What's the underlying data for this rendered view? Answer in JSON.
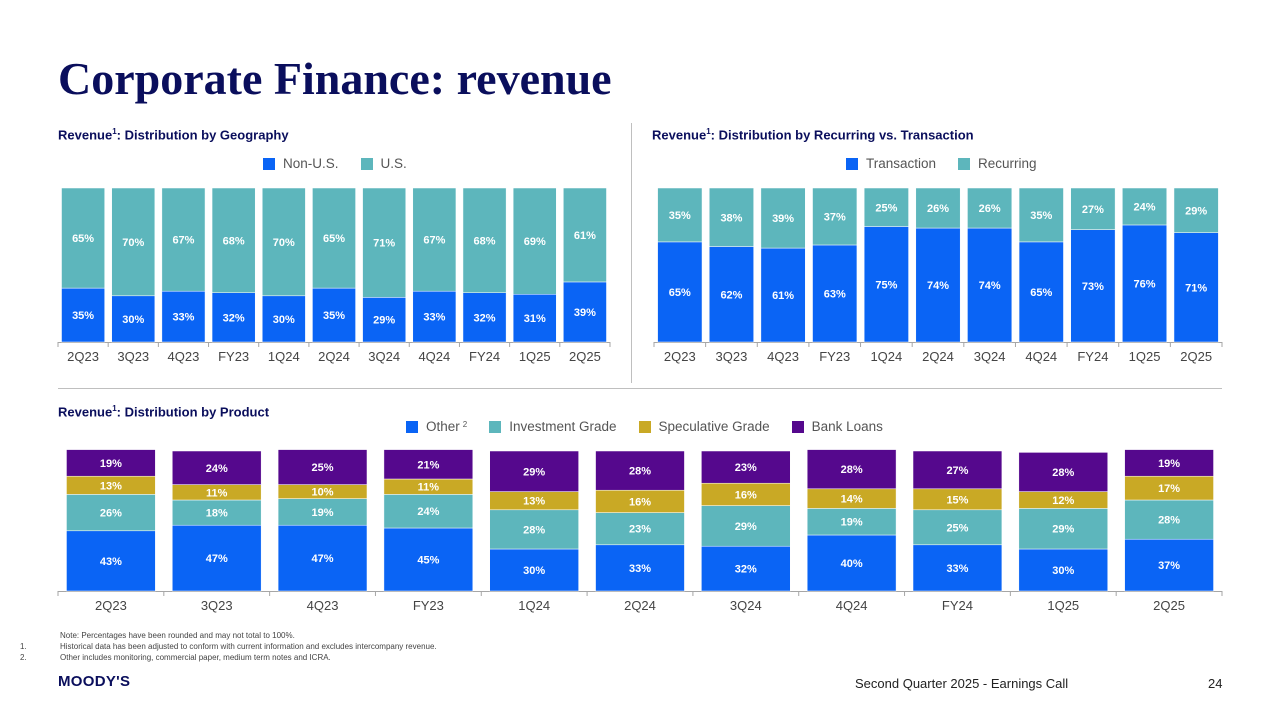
{
  "page": {
    "title": "Corporate Finance: revenue",
    "footer": "Second Quarter 2025 - Earnings Call",
    "page_number": "24",
    "logo": "MOODY'S",
    "note": "Note: Percentages have been rounded and may not total to 100%.",
    "footnotes": [
      {
        "num": "1.",
        "text": "Historical data has been adjusted to conform with current information and excludes intercompany revenue."
      },
      {
        "num": "2.",
        "text": "Other includes monitoring, commercial paper, medium term notes and ICRA."
      }
    ]
  },
  "colors": {
    "blue": "#0a64f5",
    "teal": "#5db6bc",
    "gold": "#c9a925",
    "purple": "#55088d",
    "title": "#0a0e5c"
  },
  "chart_data": [
    {
      "type": "bar",
      "stacked": true,
      "title_prefix": "Revenue",
      "title_sup": "1",
      "title_suffix": ": Distribution by Geography",
      "categories": [
        "2Q23",
        "3Q23",
        "4Q23",
        "FY23",
        "1Q24",
        "2Q24",
        "3Q24",
        "4Q24",
        "FY24",
        "1Q25",
        "2Q25"
      ],
      "series": [
        {
          "name": "Non-U.S.",
          "color": "#0a64f5",
          "values": [
            35,
            30,
            33,
            32,
            30,
            35,
            29,
            33,
            32,
            31,
            39
          ]
        },
        {
          "name": "U.S.",
          "color": "#5db6bc",
          "values": [
            65,
            70,
            67,
            68,
            70,
            65,
            71,
            67,
            68,
            69,
            61
          ]
        }
      ],
      "value_suffix": "%",
      "ylim": [
        0,
        100
      ]
    },
    {
      "type": "bar",
      "stacked": true,
      "title_prefix": "Revenue",
      "title_sup": "1",
      "title_suffix": ": Distribution by Recurring vs. Transaction",
      "categories": [
        "2Q23",
        "3Q23",
        "4Q23",
        "FY23",
        "1Q24",
        "2Q24",
        "3Q24",
        "4Q24",
        "FY24",
        "1Q25",
        "2Q25"
      ],
      "series": [
        {
          "name": "Transaction",
          "color": "#0a64f5",
          "values": [
            65,
            62,
            61,
            63,
            75,
            74,
            74,
            65,
            73,
            76,
            71
          ]
        },
        {
          "name": "Recurring",
          "color": "#5db6bc",
          "values": [
            35,
            38,
            39,
            37,
            25,
            26,
            26,
            35,
            27,
            24,
            29
          ]
        }
      ],
      "value_suffix": "%",
      "ylim": [
        0,
        100
      ]
    },
    {
      "type": "bar",
      "stacked": true,
      "title_prefix": "Revenue",
      "title_sup": "1",
      "title_suffix": ": Distribution by Product",
      "categories": [
        "2Q23",
        "3Q23",
        "4Q23",
        "FY23",
        "1Q24",
        "2Q24",
        "3Q24",
        "4Q24",
        "FY24",
        "1Q25",
        "2Q25"
      ],
      "series": [
        {
          "name": "Other",
          "name_sup": "2",
          "color": "#0a64f5",
          "values": [
            43,
            47,
            47,
            45,
            30,
            33,
            32,
            40,
            33,
            30,
            37
          ]
        },
        {
          "name": "Investment Grade",
          "color": "#5db6bc",
          "values": [
            26,
            18,
            19,
            24,
            28,
            23,
            29,
            19,
            25,
            29,
            28
          ]
        },
        {
          "name": "Speculative Grade",
          "color": "#c9a925",
          "values": [
            13,
            11,
            10,
            11,
            13,
            16,
            16,
            14,
            15,
            12,
            17
          ]
        },
        {
          "name": "Bank Loans",
          "color": "#55088d",
          "values": [
            19,
            24,
            25,
            21,
            29,
            28,
            23,
            28,
            27,
            28,
            19
          ]
        }
      ],
      "value_suffix": "%",
      "ylim": [
        0,
        100
      ]
    }
  ]
}
